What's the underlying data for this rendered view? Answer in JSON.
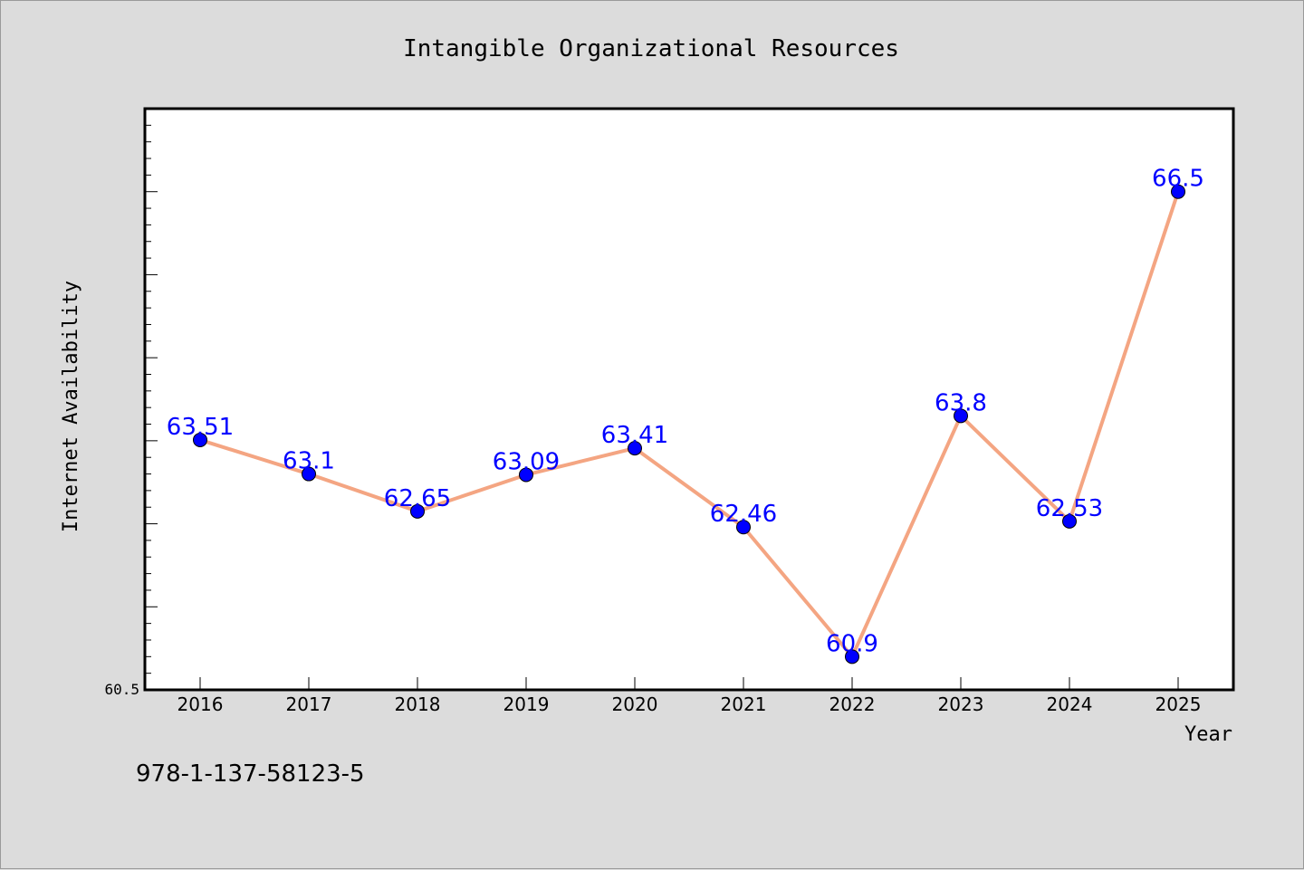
{
  "chart_data": {
    "type": "line",
    "title": "Intangible Organizational Resources",
    "xlabel": "Year",
    "ylabel": "Internet Availability",
    "categories": [
      "2016",
      "2017",
      "2018",
      "2019",
      "2020",
      "2021",
      "2022",
      "2023",
      "2024",
      "2025"
    ],
    "series": [
      {
        "values": [
          63.51,
          63.1,
          62.65,
          63.09,
          63.41,
          62.46,
          60.9,
          63.8,
          62.53,
          66.5
        ],
        "data_labels": [
          "63.51",
          "63.1",
          "62.65",
          "63.09",
          "63.41",
          "62.46",
          "60.9",
          "63.8",
          "62.53",
          "66.5"
        ],
        "line_color": "#f4a582",
        "marker_color": "#0000ff",
        "label_color": "#0000ff"
      }
    ],
    "ylim": [
      60.5,
      67.5
    ],
    "y_tick_labels": [
      "60.5"
    ],
    "grid": false,
    "legend": "none"
  },
  "footer_text": "978-1-137-58123-5",
  "colors": {
    "background": "#dcdcdc",
    "plot_background": "#ffffff",
    "axis": "#000000"
  }
}
